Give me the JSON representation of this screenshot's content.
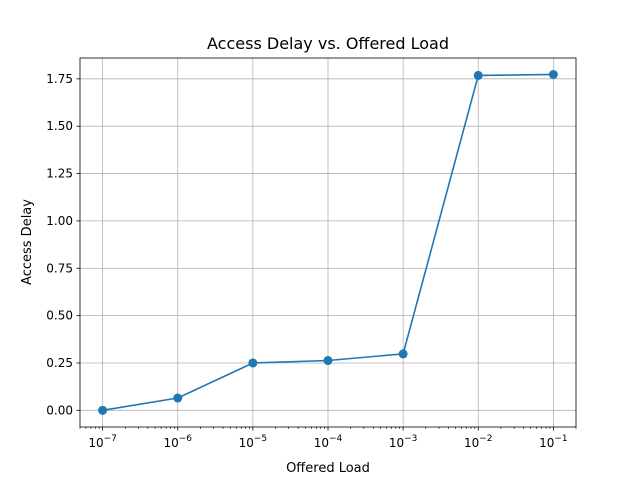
{
  "chart_data": {
    "type": "line",
    "title": "Access Delay vs. Offered Load",
    "xlabel": "Offered Load",
    "ylabel": "Access Delay",
    "x_scale": "log",
    "grid": true,
    "x": [
      1e-07,
      1e-06,
      1e-05,
      0.0001,
      0.001,
      0.01,
      0.1
    ],
    "series": [
      {
        "values": [
          0.0,
          0.065,
          0.25,
          0.263,
          0.298,
          1.768,
          1.773
        ],
        "color": "#1f77b4",
        "marker": "circle"
      }
    ],
    "xlim": [
      5e-08,
      0.2
    ],
    "ylim": [
      -0.088,
      1.86
    ],
    "x_ticks": [
      {
        "value": 1e-07,
        "base": "10",
        "exp": "−7"
      },
      {
        "value": 1e-06,
        "base": "10",
        "exp": "−6"
      },
      {
        "value": 1e-05,
        "base": "10",
        "exp": "−5"
      },
      {
        "value": 0.0001,
        "base": "10",
        "exp": "−4"
      },
      {
        "value": 0.001,
        "base": "10",
        "exp": "−3"
      },
      {
        "value": 0.01,
        "base": "10",
        "exp": "−2"
      },
      {
        "value": 0.1,
        "base": "10",
        "exp": "−1"
      }
    ],
    "y_ticks": [
      {
        "value": 0.0,
        "label": "0.00"
      },
      {
        "value": 0.25,
        "label": "0.25"
      },
      {
        "value": 0.5,
        "label": "0.50"
      },
      {
        "value": 0.75,
        "label": "0.75"
      },
      {
        "value": 1.0,
        "label": "1.00"
      },
      {
        "value": 1.25,
        "label": "1.25"
      },
      {
        "value": 1.5,
        "label": "1.50"
      },
      {
        "value": 1.75,
        "label": "1.75"
      }
    ]
  }
}
